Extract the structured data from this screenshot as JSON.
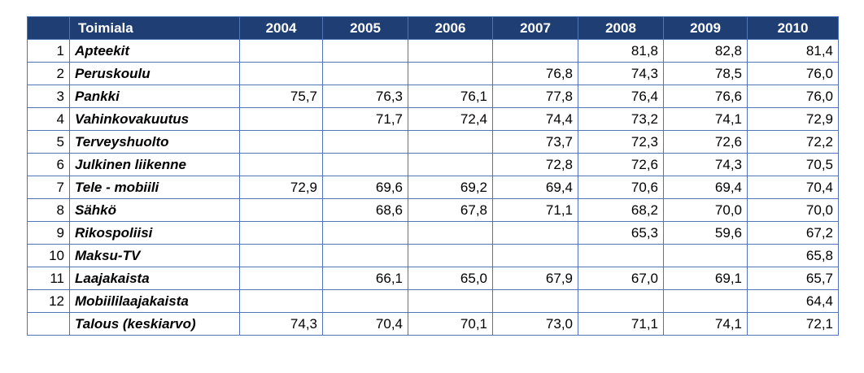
{
  "table": {
    "header": {
      "index": "",
      "name": "Toimiala",
      "years": [
        "2004",
        "2005",
        "2006",
        "2007",
        "2008",
        "2009",
        "2010"
      ]
    },
    "rows": [
      {
        "index": "1",
        "name": "Apteekit",
        "values": [
          "",
          "",
          "",
          "",
          "81,8",
          "82,8",
          "81,4"
        ]
      },
      {
        "index": "2",
        "name": "Peruskoulu",
        "values": [
          "",
          "",
          "",
          "76,8",
          "74,3",
          "78,5",
          "76,0"
        ]
      },
      {
        "index": "3",
        "name": "Pankki",
        "values": [
          "75,7",
          "76,3",
          "76,1",
          "77,8",
          "76,4",
          "76,6",
          "76,0"
        ]
      },
      {
        "index": "4",
        "name": "Vahinkovakuutus",
        "values": [
          "",
          "71,7",
          "72,4",
          "74,4",
          "73,2",
          "74,1",
          "72,9"
        ]
      },
      {
        "index": "5",
        "name": "Terveyshuolto",
        "values": [
          "",
          "",
          "",
          "73,7",
          "72,3",
          "72,6",
          "72,2"
        ]
      },
      {
        "index": "6",
        "name": "Julkinen liikenne",
        "values": [
          "",
          "",
          "",
          "72,8",
          "72,6",
          "74,3",
          "70,5"
        ]
      },
      {
        "index": "7",
        "name": "Tele - mobiili",
        "values": [
          "72,9",
          "69,6",
          "69,2",
          "69,4",
          "70,6",
          "69,4",
          "70,4"
        ]
      },
      {
        "index": "8",
        "name": "Sähkö",
        "values": [
          "",
          "68,6",
          "67,8",
          "71,1",
          "68,2",
          "70,0",
          "70,0"
        ]
      },
      {
        "index": "9",
        "name": "Rikospoliisi",
        "values": [
          "",
          "",
          "",
          "",
          "65,3",
          "59,6",
          "67,2"
        ]
      },
      {
        "index": "10",
        "name": "Maksu-TV",
        "values": [
          "",
          "",
          "",
          "",
          "",
          "",
          "65,8"
        ]
      },
      {
        "index": "11",
        "name": "Laajakaista",
        "values": [
          "",
          "66,1",
          "65,0",
          "67,9",
          "67,0",
          "69,1",
          "65,7"
        ]
      },
      {
        "index": "12",
        "name": "Mobiililaajakaista",
        "values": [
          "",
          "",
          "",
          "",
          "",
          "",
          "64,4"
        ]
      },
      {
        "index": "",
        "name": "Talous (keskiarvo)",
        "values": [
          "74,3",
          "70,4",
          "70,1",
          "73,0",
          "71,1",
          "74,1",
          "72,1"
        ]
      }
    ]
  }
}
